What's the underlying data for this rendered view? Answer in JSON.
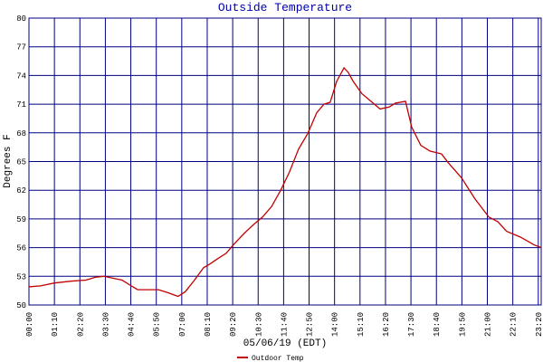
{
  "chart_data": {
    "type": "line",
    "title": "Outside Temperature",
    "y_label": "Degrees F",
    "x_label": "05/06/19 (EDT)",
    "x": [
      0,
      32,
      70,
      119,
      157,
      182,
      206,
      231,
      256,
      281,
      299,
      331,
      356,
      381,
      410,
      430,
      455,
      480,
      498,
      517,
      542,
      562,
      592,
      617,
      642,
      667,
      692,
      716,
      741,
      766,
      791,
      811,
      828,
      846,
      866,
      878,
      891,
      915,
      940,
      965,
      990,
      1007,
      1035,
      1052,
      1077,
      1102,
      1134,
      1152,
      1189,
      1226,
      1264,
      1289,
      1313,
      1351,
      1388,
      1408
    ],
    "series": [
      {
        "name": "Outdoor Temp",
        "color": "#c00000",
        "values": [
          51.9,
          52.0,
          52.3,
          52.5,
          52.6,
          52.9,
          53.0,
          52.8,
          52.6,
          52.0,
          51.6,
          51.6,
          51.6,
          51.3,
          50.9,
          51.4,
          52.6,
          53.9,
          54.3,
          54.8,
          55.4,
          56.3,
          57.5,
          58.4,
          59.2,
          60.3,
          62.0,
          63.9,
          66.3,
          67.9,
          70.1,
          71.0,
          71.2,
          73.4,
          74.8,
          74.3,
          73.4,
          72.1,
          71.3,
          70.5,
          70.7,
          71.1,
          71.3,
          68.6,
          66.7,
          66.1,
          65.8,
          64.9,
          63.3,
          61.1,
          59.2,
          58.7,
          57.7,
          57.1,
          56.3,
          56.0
        ]
      }
    ],
    "xlim": [
      0,
      1408
    ],
    "xticks": [
      {
        "value": 0,
        "label": "00:00"
      },
      {
        "value": 70,
        "label": "01:10"
      },
      {
        "value": 140,
        "label": "02:20"
      },
      {
        "value": 210,
        "label": "03:30"
      },
      {
        "value": 280,
        "label": "04:40"
      },
      {
        "value": 350,
        "label": "05:50"
      },
      {
        "value": 420,
        "label": "07:00"
      },
      {
        "value": 490,
        "label": "08:10"
      },
      {
        "value": 560,
        "label": "09:20"
      },
      {
        "value": 630,
        "label": "10:30"
      },
      {
        "value": 700,
        "label": "11:40"
      },
      {
        "value": 770,
        "label": "12:50"
      },
      {
        "value": 840,
        "label": "14:00"
      },
      {
        "value": 910,
        "label": "15:10"
      },
      {
        "value": 980,
        "label": "16:20"
      },
      {
        "value": 1050,
        "label": "17:30"
      },
      {
        "value": 1120,
        "label": "18:40"
      },
      {
        "value": 1190,
        "label": "19:50"
      },
      {
        "value": 1260,
        "label": "21:00"
      },
      {
        "value": 1330,
        "label": "22:10"
      },
      {
        "value": 1400,
        "label": "23:20"
      }
    ],
    "ylim": [
      50,
      80
    ],
    "yticks": [
      50,
      53,
      56,
      59,
      62,
      65,
      68,
      71,
      74,
      77,
      80
    ],
    "grid": true,
    "grid_color": "#000080",
    "legend": "bottom"
  }
}
